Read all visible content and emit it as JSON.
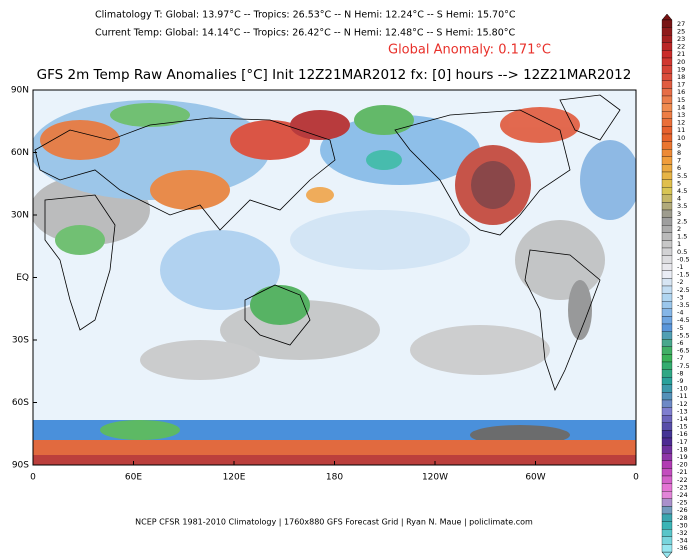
{
  "header": {
    "climatology": "Climatology T:  Global: 13.97°C -- Tropics: 26.53°C -- N Hemi: 12.24°C -- S Hemi: 15.70°C",
    "current": "Current Temp:  Global: 14.14°C -- Tropics: 26.42°C -- N Hemi: 12.48°C -- S Hemi: 15.80°C",
    "anomaly": "Global Anomaly: 0.171°C"
  },
  "title": "GFS 2m Temp Raw Anomalies [°C] Init 12Z21MAR2012 fx: [0] hours --> 12Z21MAR2012",
  "lat_labels": [
    "90N",
    "60N",
    "30N",
    "EQ",
    "30S",
    "60S",
    "90S"
  ],
  "lon_labels": [
    "0",
    "60E",
    "120E",
    "180",
    "120W",
    "60W",
    "0"
  ],
  "footer": "NCEP CFSR 1981-2010 Climatology | 1760x880 GFS Forecast Grid | Ryan N. Maue | policlimate.com",
  "colorbar": [
    27,
    25,
    23,
    22,
    21,
    20,
    19,
    18,
    17,
    16,
    15,
    14,
    13,
    12,
    11,
    10,
    9,
    8,
    7,
    6,
    5.5,
    5,
    4.5,
    4,
    3.5,
    3,
    2.5,
    2,
    1.5,
    1,
    0.5,
    -0.5,
    -1,
    -1.5,
    -2,
    -2.5,
    -3,
    -3.5,
    -4,
    -4.5,
    -5,
    -5.5,
    -6,
    -6.5,
    -7,
    -7.5,
    -8,
    -9,
    -10,
    -11,
    -12,
    -13,
    -14,
    -15,
    -16,
    -17,
    -18,
    -19,
    -20,
    -21,
    -22,
    -23,
    -24,
    -25,
    -26,
    -28,
    -30,
    -32,
    -34,
    -36
  ]
}
